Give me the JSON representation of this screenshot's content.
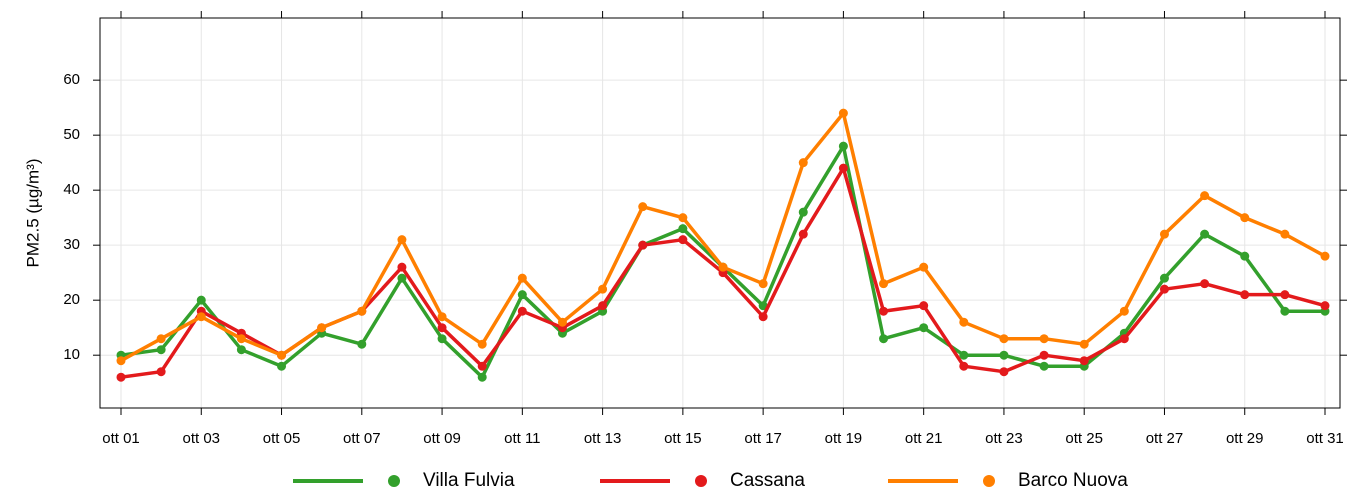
{
  "chart_data": {
    "type": "line",
    "y_label": "PM2.5 (µg/m³)",
    "categories": [
      "ott 01",
      null,
      "ott 03",
      null,
      "ott 05",
      null,
      "ott 07",
      null,
      "ott 09",
      null,
      "ott 11",
      null,
      "ott 13",
      null,
      "ott 15",
      null,
      "ott 17",
      null,
      "ott 19",
      null,
      "ott 21",
      null,
      "ott 23",
      null,
      "ott 25",
      null,
      "ott 27",
      null,
      "ott 29",
      null,
      "ott 31"
    ],
    "series": [
      {
        "name": "Villa Fulvia",
        "color": "#33a02c",
        "values": [
          10,
          11,
          20,
          11,
          8,
          14,
          12,
          24,
          13,
          6,
          21,
          14,
          18,
          30,
          33,
          26,
          19,
          36,
          48,
          13,
          15,
          10,
          10,
          8,
          8,
          14,
          24,
          32,
          28,
          18,
          18
        ]
      },
      {
        "name": "Cassana",
        "color": "#e31a1c",
        "values": [
          6,
          7,
          18,
          14,
          10,
          15,
          18,
          26,
          15,
          8,
          18,
          15,
          19,
          30,
          31,
          25,
          17,
          32,
          44,
          18,
          19,
          8,
          7,
          10,
          9,
          13,
          22,
          23,
          21,
          21,
          19
        ]
      },
      {
        "name": "Barco Nuova",
        "color": "#ff7f00",
        "values": [
          9,
          13,
          17,
          13,
          10,
          15,
          18,
          31,
          17,
          12,
          24,
          16,
          22,
          37,
          35,
          26,
          23,
          45,
          54,
          23,
          26,
          16,
          13,
          13,
          12,
          18,
          32,
          39,
          35,
          32,
          28
        ]
      }
    ],
    "ylim": [
      0.4,
      71.3
    ],
    "yticks": [
      10,
      20,
      30,
      40,
      50,
      60
    ],
    "grid": true,
    "legend": "bottom"
  }
}
